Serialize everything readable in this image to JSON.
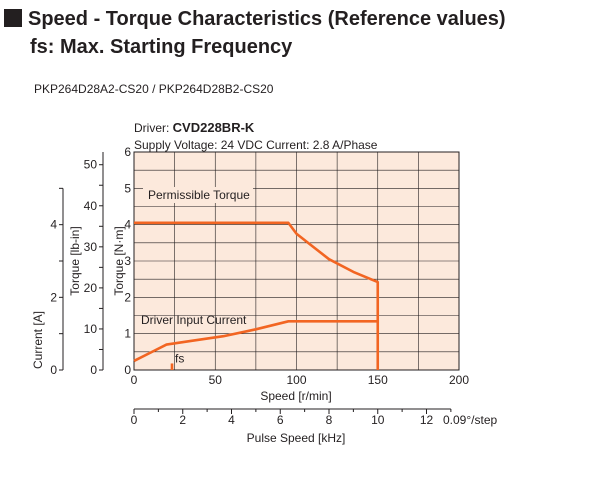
{
  "header": {
    "title_line1": "Speed - Torque Characteristics (Reference values)",
    "title_line2": "fs: Max. Starting Frequency"
  },
  "model": "PKP264D28A2-CS20 / PKP264D28B2-CS20",
  "chart_data": {
    "type": "line",
    "driver_label": "Driver: ",
    "driver_model": "CVD228BR-K",
    "supply_text": "Supply Voltage: 24 VDC  Current: 2.8 A/Phase",
    "xlabel": "Speed [r/min]",
    "x2label": "Pulse Speed [kHz]",
    "x2_note": "0.09°/step",
    "ylabel_nm": "Torque [N·m]",
    "ylabel_lbin": "Torque [lb-in]",
    "ylabel_current": "Current [A]",
    "xlim": [
      0,
      200
    ],
    "ylim": [
      0,
      6
    ],
    "x_ticks": [
      0,
      50,
      100,
      150,
      200
    ],
    "x2_ticks": [
      "0",
      "2",
      "4",
      "6",
      "8",
      "10",
      "12"
    ],
    "y_ticks_nm": [
      0,
      1,
      2,
      3,
      4,
      5,
      6
    ],
    "y_ticks_lbin": [
      0,
      10,
      20,
      30,
      40,
      50
    ],
    "y_ticks_current": [
      0,
      2,
      4
    ],
    "grid": true,
    "series": [
      {
        "name": "Permissible Torque",
        "x": [
          0,
          95,
          100,
          110,
          120,
          135,
          150,
          150
        ],
        "y": [
          4.05,
          4.05,
          3.75,
          3.4,
          3.05,
          2.7,
          2.42,
          0
        ]
      },
      {
        "name": "Driver Input Current",
        "x": [
          0,
          12,
          20,
          35,
          55,
          75,
          95,
          150
        ],
        "y": [
          0.25,
          0.52,
          0.7,
          0.8,
          0.93,
          1.12,
          1.34,
          1.34
        ]
      }
    ],
    "annotations": [
      {
        "text": "fs",
        "x": 24,
        "y": 0.18
      }
    ]
  },
  "colors": {
    "plot_bg": "#fce9dc",
    "line": "#f26522",
    "grid": "#231f20"
  }
}
